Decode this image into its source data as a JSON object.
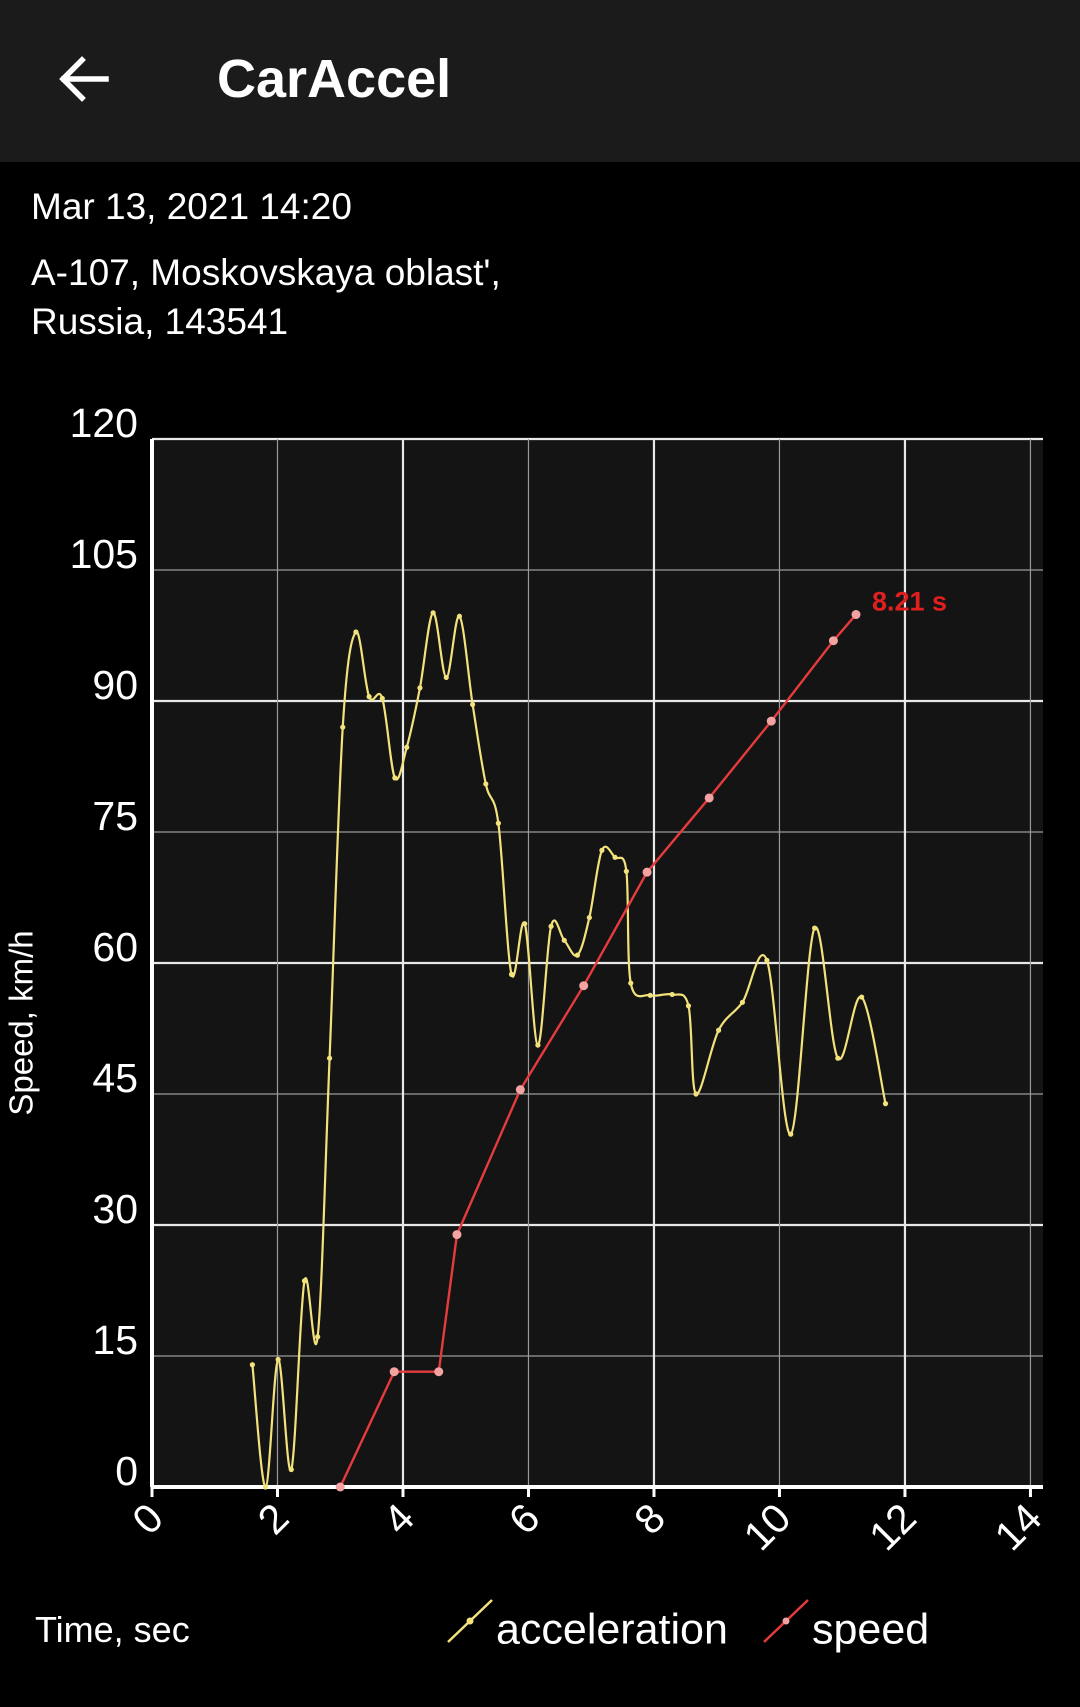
{
  "header": {
    "title": "CarAccel"
  },
  "info": {
    "date": "Mar 13, 2021 14:20",
    "address": "A-107, Moskovskaya oblast', Russia, 143541"
  },
  "chart_data": {
    "type": "line",
    "x_label": "Time, sec",
    "y_label": "Speed, km/h",
    "xlim": [
      0,
      14.2
    ],
    "xticks": [
      0,
      2,
      4,
      6,
      8,
      10,
      12,
      14
    ],
    "ylim": [
      0,
      120
    ],
    "yticks": [
      0,
      15,
      30,
      45,
      60,
      75,
      90,
      105,
      120
    ],
    "grid": true,
    "legend": "bottom",
    "series": [
      {
        "name": "acceleration",
        "color": "#f3e27c",
        "smooth": true,
        "x": [
          1.6,
          1.81,
          2.01,
          2.22,
          2.43,
          2.64,
          2.83,
          3.04,
          3.25,
          3.46,
          3.67,
          3.87,
          4.06,
          4.27,
          4.48,
          4.69,
          4.9,
          5.11,
          5.32,
          5.52,
          5.73,
          5.94,
          6.15,
          6.36,
          6.57,
          6.78,
          6.97,
          7.17,
          7.38,
          7.56,
          7.63,
          7.94,
          8.29,
          8.55,
          8.67,
          9.03,
          9.41,
          9.8,
          10.18,
          10.56,
          10.93,
          11.31,
          11.69
        ],
        "values": [
          14.0,
          0,
          14.6,
          2.0,
          23.6,
          17.2,
          49.1,
          87.0,
          97.9,
          90.5,
          90.3,
          81.2,
          84.7,
          91.5,
          100.1,
          92.7,
          99.7,
          89.6,
          80.5,
          76.0,
          58.7,
          64.5,
          50.6,
          64.2,
          62.6,
          60.9,
          65.2,
          72.9,
          72.1,
          70.5,
          57.7,
          56.3,
          56.4,
          55.1,
          45.0,
          52.3,
          55.5,
          60.3,
          40.4,
          64.0,
          49.1,
          56.1,
          43.9
        ]
      },
      {
        "name": "speed",
        "color": "#e63b3d",
        "smooth": false,
        "x": [
          3.0,
          3.86,
          4.57,
          4.86,
          5.87,
          6.88,
          7.89,
          8.88,
          9.87,
          10.86,
          11.22
        ],
        "values": [
          0,
          13.2,
          13.2,
          28.9,
          45.5,
          57.4,
          70.4,
          78.9,
          87.7,
          96.9,
          99.9
        ]
      }
    ],
    "annotation": {
      "text": "8.21 s",
      "color": "#e21f1f"
    }
  }
}
